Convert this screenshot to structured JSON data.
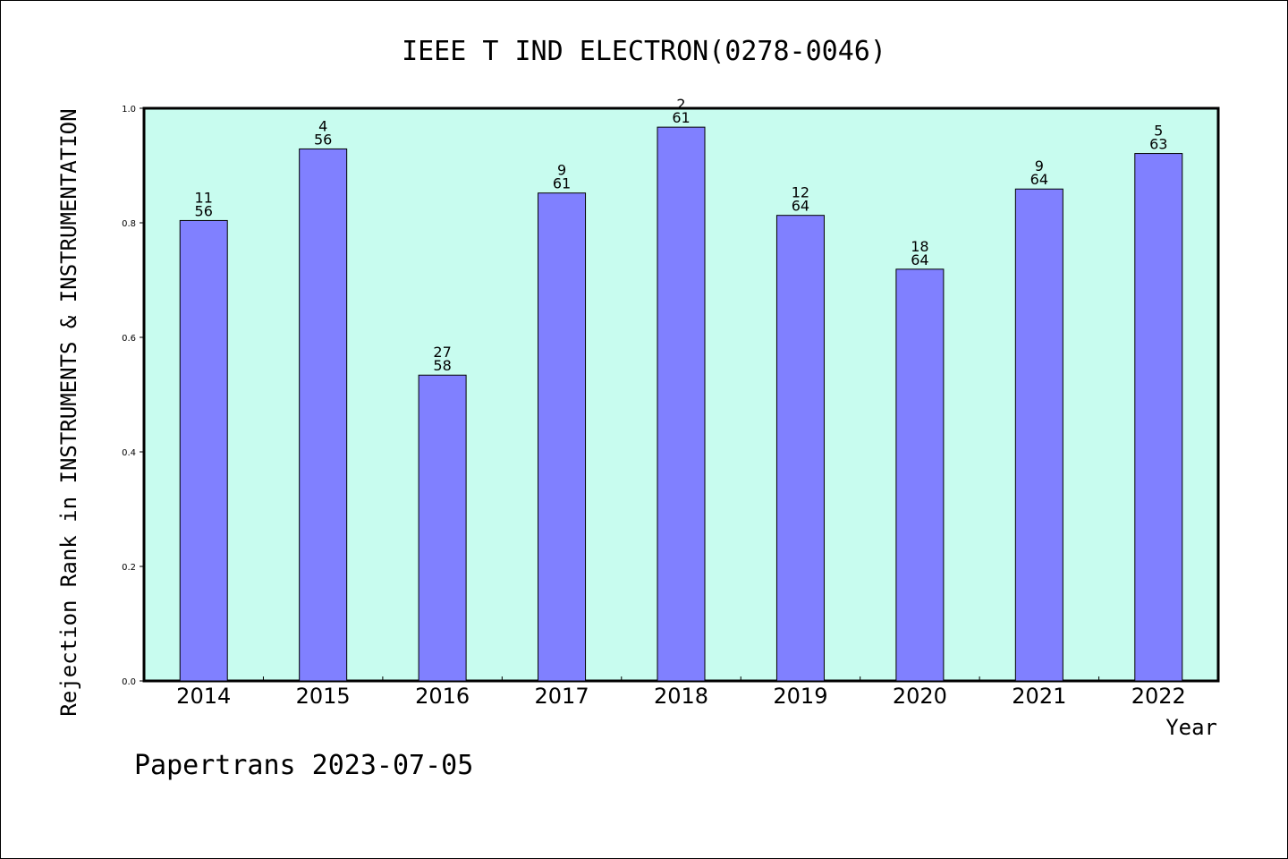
{
  "chart_data": {
    "type": "bar",
    "title": "IEEE T IND ELECTRON(0278-0046)",
    "ylabel": "Rejection Rank in INSTRUMENTS & INSTRUMENTATION",
    "xlabel": "Year",
    "ylim": [
      0.0,
      1.0
    ],
    "yticks": [
      "0.0",
      "0.2",
      "0.4",
      "0.6",
      "0.8",
      "1.0"
    ],
    "categories": [
      "2014",
      "2015",
      "2016",
      "2017",
      "2018",
      "2019",
      "2020",
      "2021",
      "2022"
    ],
    "values": [
      0.804,
      0.929,
      0.534,
      0.852,
      0.967,
      0.813,
      0.719,
      0.859,
      0.921
    ],
    "rank": [
      "11",
      "4",
      "27",
      "9",
      "2",
      "12",
      "18",
      "9",
      "5"
    ],
    "total": [
      "56",
      "56",
      "58",
      "61",
      "61",
      "64",
      "64",
      "64",
      "63"
    ],
    "grid": false,
    "colors": {
      "plot_background": "#c8fcef",
      "bar_fill": "#8080ff",
      "bar_stroke": "#000000"
    }
  },
  "footer": "Papertrans 2023-07-05"
}
